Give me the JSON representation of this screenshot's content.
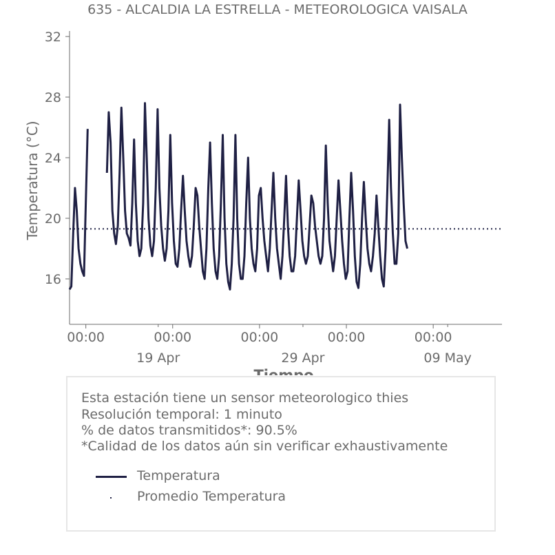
{
  "chart_data": {
    "type": "line",
    "title": "635 - ALCALDIA LA ESTRELLA - METEOROLOGICA VAISALA",
    "xlabel": "Tiempo",
    "ylabel": "Temperatura (°C)",
    "ylim": [
      13,
      32
    ],
    "yticks": [
      16,
      20,
      24,
      28,
      32
    ],
    "xlim": [
      "2024-04-12T21:00",
      "2024-05-12T18:00"
    ],
    "xticks_major": [
      {
        "at": "2024-04-14T00:00",
        "label": "00:00"
      },
      {
        "at": "2024-04-20T00:00",
        "label": "00:00"
      },
      {
        "at": "2024-04-26T00:00",
        "label": "00:00"
      },
      {
        "at": "2024-05-02T00:00",
        "label": "00:00"
      },
      {
        "at": "2024-05-08T00:00",
        "label": "00:00"
      }
    ],
    "xticks_minor": [
      {
        "at": "2024-04-19T00:00",
        "label": "19 Apr"
      },
      {
        "at": "2024-04-29T00:00",
        "label": "29 Apr"
      },
      {
        "at": "2024-05-09T00:00",
        "label": "09 May"
      }
    ],
    "grid": false,
    "series": [
      {
        "name": "Temperatura",
        "color": "#1f2044",
        "style": "line",
        "segments": [
          {
            "start": "2024-04-12T21:00",
            "step_hours": 3,
            "values": [
              15.3,
              15.5,
              19.0,
              22.0,
              20.5,
              18.0,
              17.0,
              16.5,
              16.2,
              21.0,
              25.9
            ]
          },
          {
            "start": "2024-04-15T11:00",
            "step_hours": 3,
            "values": [
              23.0,
              27.0,
              25.0,
              20.5,
              19.0,
              18.3,
              19.5,
              23.0,
              27.3,
              24.0,
              20.5,
              19.0,
              18.7,
              18.2,
              21.0,
              25.2,
              21.0,
              18.5,
              17.5,
              18.0,
              21.0,
              27.6,
              24.0,
              20.0,
              18.2,
              17.5,
              18.5,
              22.0,
              27.2,
              22.0,
              19.5,
              18.0,
              17.2,
              18.0,
              20.5,
              25.5,
              21.0,
              18.5,
              17.0,
              16.8,
              18.0,
              20.5,
              22.8,
              20.5,
              18.5,
              17.5,
              16.8,
              17.5,
              19.5,
              22.0,
              21.5,
              19.5,
              18.0,
              16.5,
              16.0,
              18.0,
              22.0,
              25.0,
              21.0,
              18.0,
              16.5,
              16.0,
              17.5,
              21.0,
              25.5,
              20.0,
              17.0,
              15.8,
              15.3,
              17.0,
              20.0,
              25.5,
              20.0,
              17.0,
              16.0,
              16.0,
              17.5,
              21.0,
              24.0,
              20.0,
              18.0,
              17.0,
              16.5,
              18.0,
              21.5,
              22.0,
              20.0,
              18.5,
              17.5,
              16.5,
              18.0,
              20.5,
              23.0,
              20.0,
              18.0,
              17.0,
              16.0,
              17.5,
              20.0,
              22.8,
              19.5,
              17.5,
              16.5,
              16.5,
              17.5,
              20.0,
              22.5,
              20.5,
              18.5,
              17.5,
              17.0,
              17.5,
              19.5,
              21.5,
              21.0,
              19.5,
              18.5,
              17.5,
              17.0,
              17.5,
              20.0,
              24.8,
              21.0,
              18.5,
              17.5,
              16.5,
              17.5,
              20.0,
              22.5,
              20.5,
              18.5,
              17.0,
              16.0,
              16.5,
              20.0,
              23.0,
              20.5,
              17.5,
              15.8,
              15.4,
              17.0,
              20.0,
              22.4,
              20.0,
              18.0,
              17.0,
              16.5,
              17.5,
              19.0,
              21.5,
              19.5,
              17.5,
              16.0,
              15.5,
              18.0,
              22.0,
              26.5,
              22.0,
              19.0,
              17.0,
              17.0,
              19.0,
              27.5,
              24.0,
              21.0,
              18.5,
              18.0
            ]
          }
        ]
      },
      {
        "name": "Promedio Temperatura",
        "color": "#1f2044",
        "style": "dotted",
        "value": 19.3
      }
    ]
  },
  "info": {
    "lines": [
      "Esta estación tiene un sensor meteorologico thies",
      "Resolución temporal: 1 minuto",
      "% de datos transmitidos*: 90.5%",
      "*Calidad de los datos aún sin verificar exhaustivamente"
    ]
  }
}
